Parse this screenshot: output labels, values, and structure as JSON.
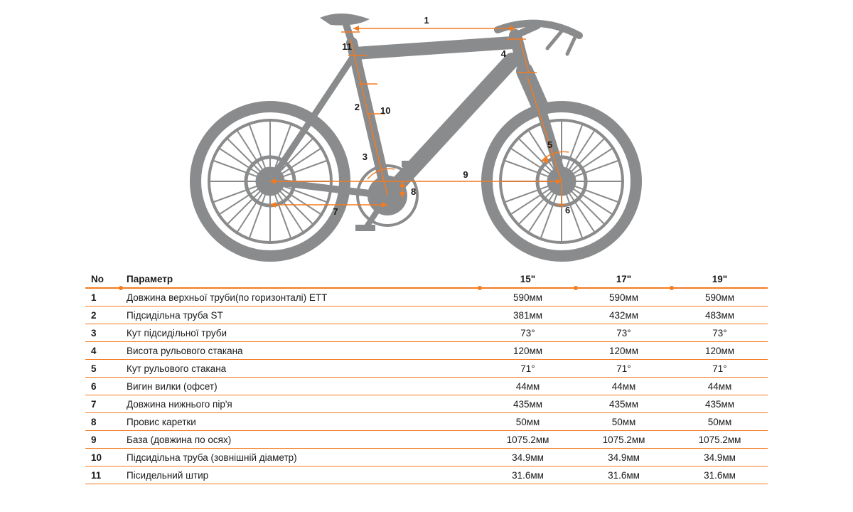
{
  "diagram": {
    "bike_color": "#8a8b8c",
    "line_color": "#f47b20",
    "label_color": "#1a1a1a",
    "labels": [
      "1",
      "2",
      "3",
      "4",
      "5",
      "6",
      "7",
      "8",
      "9",
      "10",
      "11"
    ]
  },
  "table": {
    "border_color": "#f47b20",
    "dot_color": "#f47b20",
    "text_color": "#1a1a1a",
    "font_size": 13.5,
    "columns": {
      "no": "No",
      "param": "Параметр",
      "sizes": [
        "15\"",
        "17\"",
        "19\""
      ]
    },
    "rows": [
      {
        "no": "1",
        "param": "Довжина верхньої труби(по горизонталі) ETT",
        "vals": [
          "590мм",
          "590мм",
          "590мм"
        ]
      },
      {
        "no": "2",
        "param": "Підсидільна труба ST",
        "vals": [
          "381мм",
          "432мм",
          "483мм"
        ]
      },
      {
        "no": "3",
        "param": "Кут підсидільної труби",
        "vals": [
          "73°",
          "73°",
          "73°"
        ]
      },
      {
        "no": "4",
        "param": "Висота рульового стакана",
        "vals": [
          "120мм",
          "120мм",
          "120мм"
        ]
      },
      {
        "no": "5",
        "param": "Кут рульового стакана",
        "vals": [
          "71°",
          "71°",
          "71°"
        ]
      },
      {
        "no": "6",
        "param": "Вигин вилки (офсет)",
        "vals": [
          "44мм",
          "44мм",
          "44мм"
        ]
      },
      {
        "no": "7",
        "param": "Довжина нижнього пір'я",
        "vals": [
          "435мм",
          "435мм",
          "435мм"
        ]
      },
      {
        "no": "8",
        "param": "Провис каретки",
        "vals": [
          "50мм",
          "50мм",
          "50мм"
        ]
      },
      {
        "no": "9",
        "param": "База (довжина по осях)",
        "vals": [
          "1075.2мм",
          "1075.2мм",
          "1075.2мм"
        ]
      },
      {
        "no": "10",
        "param": "Підсидільна труба (зовнішній діаметр)",
        "vals": [
          "34.9мм",
          "34.9мм",
          "34.9мм"
        ]
      },
      {
        "no": "11",
        "param": "Пісидельний штир",
        "vals": [
          "31.6мм",
          "31.6мм",
          "31.6мм"
        ]
      }
    ]
  }
}
